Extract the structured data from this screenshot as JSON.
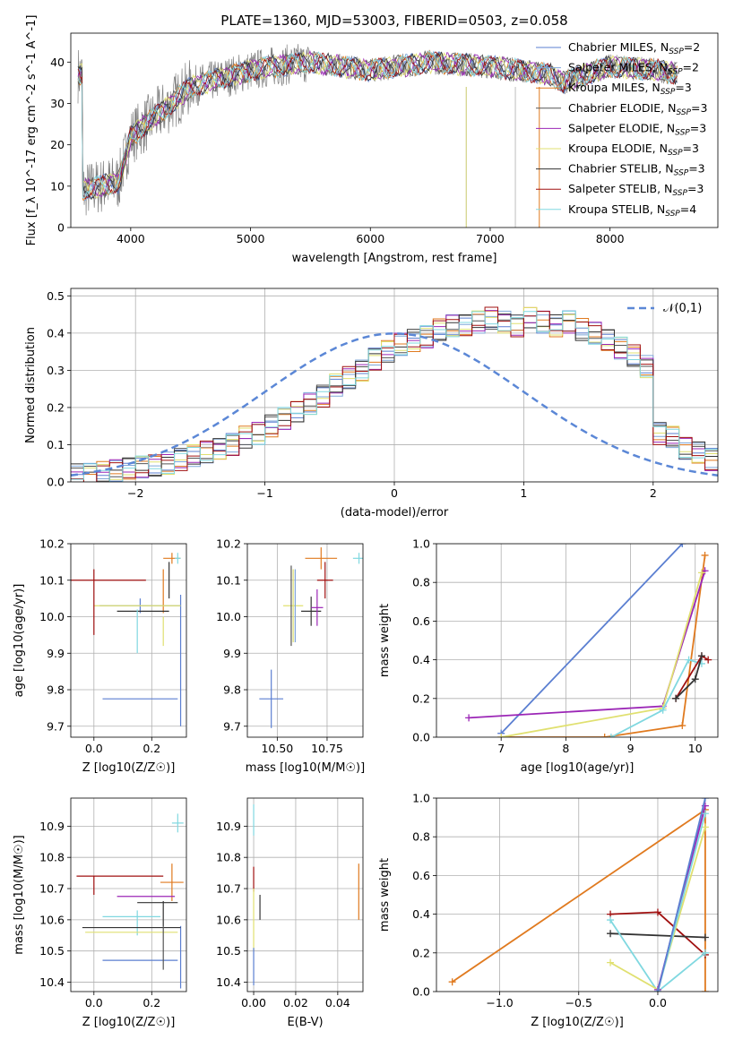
{
  "title": "PLATE=1360, MJD=53003, FIBERID=0503, z=0.058",
  "series_names": [
    "Chabrier MILES, N_SSP=2",
    "Salpeter MILES, N_SSP=2",
    "Kroupa MILES, N_SSP=3",
    "Chabrier ELODIE, N_SSP=3",
    "Salpeter ELODIE, N_SSP=3",
    "Kroupa ELODIE, N_SSP=3",
    "Chabrier STELIB, N_SSP=3",
    "Salpeter STELIB, N_SSP=3",
    "Kroupa STELIB, N_SSP=4"
  ],
  "series_colors": [
    "#5b7fd1",
    "#7fa7d9",
    "#e07a1f",
    "#555555",
    "#9b26b6",
    "#e0e070",
    "#333333",
    "#a01010",
    "#80d8e0"
  ],
  "chart_data": [
    {
      "id": "spectrum",
      "type": "line",
      "title": "PLATE=1360, MJD=53003, FIBERID=0503, z=0.058",
      "xlabel": "wavelength [Angstrom, rest frame]",
      "ylabel": "Flux [f_λ 10^-17 erg cm^-2 s^-1 A^-1]",
      "xlim": [
        3500,
        8900
      ],
      "ylim": [
        0,
        47
      ],
      "xticks": [
        "4000",
        "5000",
        "6000",
        "7000",
        "8000"
      ],
      "yticks": [
        "0",
        "10",
        "20",
        "30",
        "40"
      ],
      "legend_position": "upper right",
      "legend": [
        "Chabrier MILES, N_SSP=2",
        "Salpeter MILES, N_SSP=2",
        "Kroupa MILES, N_SSP=3",
        "Chabrier ELODIE, N_SSP=3",
        "Salpeter ELODIE, N_SSP=3",
        "Kroupa ELODIE, N_SSP=3",
        "Chabrier STELIB, N_SSP=3",
        "Salpeter STELIB, N_SSP=3",
        "Kroupa STELIB, N_SSP=4"
      ],
      "data_shape": {
        "x": [
          3600,
          3900,
          4000,
          4300,
          4500,
          5000,
          5200,
          5500,
          6000,
          6500,
          7000,
          7500,
          7600,
          8000,
          8400,
          8600
        ],
        "y": [
          9,
          11,
          22,
          29,
          34,
          38,
          39,
          40,
          38,
          40,
          39,
          37,
          35,
          39,
          38,
          37
        ]
      }
    },
    {
      "id": "residual-histogram",
      "type": "histogram",
      "xlabel": "(data-model)/error",
      "ylabel": "Normed distribution",
      "xlim": [
        -2.5,
        2.5
      ],
      "ylim": [
        0,
        0.52
      ],
      "xticks": [
        "-2",
        "-1",
        "0",
        "1",
        "2"
      ],
      "yticks": [
        "0.0",
        "0.1",
        "0.2",
        "0.3",
        "0.4",
        "0.5"
      ],
      "legend": [
        "𝒩(0,1)"
      ],
      "bin_edges_start": -2.5,
      "bin_width": 0.1,
      "hist_values": [
        0.02,
        0.02,
        0.025,
        0.03,
        0.035,
        0.04,
        0.045,
        0.05,
        0.06,
        0.07,
        0.08,
        0.09,
        0.1,
        0.12,
        0.13,
        0.15,
        0.17,
        0.19,
        0.21,
        0.23,
        0.26,
        0.28,
        0.3,
        0.33,
        0.35,
        0.37,
        0.38,
        0.39,
        0.41,
        0.42,
        0.42,
        0.43,
        0.44,
        0.43,
        0.42,
        0.44,
        0.43,
        0.42,
        0.43,
        0.41,
        0.4,
        0.38,
        0.36,
        0.34,
        0.31,
        0.28,
        0.25,
        0.22,
        0.2,
        0.17
      ],
      "hist_values_b": [
        0.13,
        0.12,
        0.09,
        0.08,
        0.06,
        0.05,
        0.04,
        0.035,
        0.03,
        0.02
      ]
    },
    {
      "id": "age-vs-Z",
      "type": "errorbar",
      "xlabel": "Z [log10(Z/Z☉)]",
      "ylabel": "age [log10(age/yr)]",
      "xlim": [
        -0.08,
        0.32
      ],
      "ylim": [
        9.67,
        10.2
      ],
      "xticks": [
        "0.0",
        "0.2"
      ],
      "yticks": [
        "9.7",
        "9.8",
        "9.9",
        "10.0",
        "10.1",
        "10.2"
      ],
      "points": [
        {
          "x": 0.16,
          "y": 10.03,
          "xerr": 0.14,
          "yerr": 0.02,
          "c": 0
        },
        {
          "x": 0.16,
          "y": 9.775,
          "xerr": 0.13,
          "yerr": 0.0,
          "c": 0
        },
        {
          "x": 0.3,
          "y": 9.88,
          "xerr": 0.0,
          "yerr": 0.18,
          "c": 0
        },
        {
          "x": 0.27,
          "y": 10.16,
          "xerr": 0.03,
          "yerr": 0.015,
          "c": 2
        },
        {
          "x": 0.24,
          "y": 10.07,
          "xerr": 0.0,
          "yerr": 0.06,
          "c": 2
        },
        {
          "x": 0.29,
          "y": 10.16,
          "xerr": 0.01,
          "yerr": 0.015,
          "c": 8
        },
        {
          "x": 0.15,
          "y": 10.03,
          "xerr": 0.15,
          "yerr": 0.0,
          "c": 5
        },
        {
          "x": 0.24,
          "y": 9.96,
          "xerr": 0.0,
          "yerr": 0.04,
          "c": 5
        },
        {
          "x": 0.17,
          "y": 10.015,
          "xerr": 0.09,
          "yerr": 0.0,
          "c": 6
        },
        {
          "x": 0.26,
          "y": 10.1,
          "xerr": 0.0,
          "yerr": 0.05,
          "c": 6
        },
        {
          "x": 0.04,
          "y": 10.1,
          "xerr": 0.14,
          "yerr": 0.0,
          "c": 7
        },
        {
          "x": 0.0,
          "y": 10.04,
          "xerr": 0.0,
          "yerr": 0.09,
          "c": 7
        },
        {
          "x": 0.15,
          "y": 9.96,
          "xerr": 0.0,
          "yerr": 0.06,
          "c": 8
        }
      ]
    },
    {
      "id": "age-vs-mass",
      "type": "errorbar",
      "xlabel": "mass [log10(M/M☉)]",
      "ylabel": "",
      "xlim": [
        10.35,
        10.93
      ],
      "ylim": [
        9.67,
        10.2
      ],
      "xticks": [
        "10.50",
        "10.75"
      ],
      "yticks": [
        "9.7",
        "9.8",
        "9.9",
        "10.0",
        "10.1",
        "10.2"
      ],
      "points": [
        {
          "x": 10.47,
          "y": 9.775,
          "xerr": 0.06,
          "yerr": 0.08,
          "c": 0
        },
        {
          "x": 10.58,
          "y": 10.03,
          "xerr": 0.05,
          "yerr": 0.1,
          "c": 5
        },
        {
          "x": 10.59,
          "y": 10.03,
          "xerr": 0.0,
          "yerr": 0.1,
          "c": 1
        },
        {
          "x": 10.72,
          "y": 10.16,
          "xerr": 0.08,
          "yerr": 0.03,
          "c": 2
        },
        {
          "x": 10.67,
          "y": 10.015,
          "xerr": 0.05,
          "yerr": 0.04,
          "c": 6
        },
        {
          "x": 10.74,
          "y": 10.1,
          "xerr": 0.04,
          "yerr": 0.05,
          "c": 7
        },
        {
          "x": 10.91,
          "y": 10.16,
          "xerr": 0.03,
          "yerr": 0.015,
          "c": 8
        },
        {
          "x": 10.7,
          "y": 10.025,
          "xerr": 0.03,
          "yerr": 0.05,
          "c": 4
        },
        {
          "x": 10.57,
          "y": 10.03,
          "xerr": 0.0,
          "yerr": 0.11,
          "c": 3
        }
      ]
    },
    {
      "id": "massweight-vs-age",
      "type": "line",
      "xlabel": "age [log10(age/yr)]",
      "ylabel": "mass weight",
      "xlim": [
        6.0,
        10.35
      ],
      "ylim": [
        0,
        1.0
      ],
      "xticks": [
        "7",
        "8",
        "9",
        "10"
      ],
      "yticks": [
        "0.0",
        "0.2",
        "0.4",
        "0.6",
        "0.8",
        "1.0"
      ],
      "lines": [
        {
          "c": 0,
          "x": [
            7.0,
            9.8
          ],
          "y": [
            0.02,
            1.0
          ]
        },
        {
          "c": 2,
          "x": [
            7.0,
            8.6,
            9.8,
            10.15
          ],
          "y": [
            0.0,
            0.0,
            0.06,
            0.94
          ]
        },
        {
          "c": 4,
          "x": [
            6.5,
            9.5,
            10.15
          ],
          "y": [
            0.1,
            0.16,
            0.86
          ]
        },
        {
          "c": 5,
          "x": [
            7.0,
            9.5,
            10.1
          ],
          "y": [
            0.0,
            0.15,
            0.85
          ]
        },
        {
          "c": 8,
          "x": [
            8.7,
            9.5,
            9.9,
            10.1
          ],
          "y": [
            0.0,
            0.14,
            0.4,
            0.38
          ]
        },
        {
          "c": 7,
          "x": [
            9.7,
            10.1,
            10.2
          ],
          "y": [
            0.2,
            0.42,
            0.4
          ]
        },
        {
          "c": 6,
          "x": [
            9.7,
            10.0,
            10.1
          ],
          "y": [
            0.2,
            0.3,
            0.42
          ]
        }
      ]
    },
    {
      "id": "mass-vs-Z",
      "type": "errorbar",
      "xlabel": "Z [log10(Z/Z☉)]",
      "ylabel": "mass [log10(M/M☉)]",
      "xlim": [
        -0.08,
        0.32
      ],
      "ylim": [
        10.37,
        10.99
      ],
      "xticks": [
        "0.0",
        "0.2"
      ],
      "yticks": [
        "10.4",
        "10.5",
        "10.6",
        "10.7",
        "10.8",
        "10.9"
      ],
      "points": [
        {
          "x": 0.16,
          "y": 10.47,
          "xerr": 0.13,
          "yerr": 0.0,
          "c": 0
        },
        {
          "x": 0.3,
          "y": 10.48,
          "xerr": 0.0,
          "yerr": 0.1,
          "c": 0
        },
        {
          "x": 0.27,
          "y": 10.72,
          "xerr": 0.04,
          "yerr": 0.06,
          "c": 2
        },
        {
          "x": 0.29,
          "y": 10.91,
          "xerr": 0.02,
          "yerr": 0.03,
          "c": 8
        },
        {
          "x": 0.09,
          "y": 10.74,
          "xerr": 0.15,
          "yerr": 0.0,
          "c": 7
        },
        {
          "x": 0.0,
          "y": 10.71,
          "xerr": 0.0,
          "yerr": 0.03,
          "c": 7
        },
        {
          "x": 0.18,
          "y": 10.675,
          "xerr": 0.1,
          "yerr": 0.0,
          "c": 4
        },
        {
          "x": 0.22,
          "y": 10.655,
          "xerr": 0.07,
          "yerr": 0.0,
          "c": 6
        },
        {
          "x": 0.24,
          "y": 10.62,
          "xerr": 0.0,
          "yerr": 0.04,
          "c": 6
        },
        {
          "x": 0.13,
          "y": 10.61,
          "xerr": 0.1,
          "yerr": 0.0,
          "c": 8
        },
        {
          "x": 0.15,
          "y": 10.59,
          "xerr": 0.0,
          "yerr": 0.04,
          "c": 8
        },
        {
          "x": 0.13,
          "y": 10.575,
          "xerr": 0.17,
          "yerr": 0.0,
          "c": 6
        },
        {
          "x": 0.13,
          "y": 10.56,
          "xerr": 0.16,
          "yerr": 0.0,
          "c": 5
        },
        {
          "x": 0.24,
          "y": 10.54,
          "xerr": 0.0,
          "yerr": 0.1,
          "c": 3
        }
      ]
    },
    {
      "id": "mass-vs-EBV",
      "type": "errorbar",
      "xlabel": "E(B-V)",
      "ylabel": "",
      "xlim": [
        -0.003,
        0.052
      ],
      "ylim": [
        10.37,
        10.99
      ],
      "xticks": [
        "0.00",
        "0.02",
        "0.04"
      ],
      "yticks": [
        "10.4",
        "10.5",
        "10.6",
        "10.7",
        "10.8",
        "10.9"
      ],
      "points": [
        {
          "x": 0.0,
          "y": 10.92,
          "xerr": 0.0,
          "yerr": 0.05,
          "c": 8
        },
        {
          "x": 0.0,
          "y": 10.73,
          "xerr": 0.0,
          "yerr": 0.04,
          "c": 7
        },
        {
          "x": 0.0,
          "y": 10.6,
          "xerr": 0.0,
          "yerr": 0.1,
          "c": 5
        },
        {
          "x": 0.0,
          "y": 10.45,
          "xerr": 0.0,
          "yerr": 0.06,
          "c": 0
        },
        {
          "x": 0.003,
          "y": 10.64,
          "xerr": 0.0,
          "yerr": 0.04,
          "c": 6
        },
        {
          "x": 0.05,
          "y": 10.69,
          "xerr": 0.0,
          "yerr": 0.09,
          "c": 2
        }
      ]
    },
    {
      "id": "massweight-vs-Z",
      "type": "line",
      "xlabel": "Z [log10(Z/Z☉)]",
      "ylabel": "mass weight",
      "xlim": [
        -1.4,
        0.38
      ],
      "ylim": [
        0,
        1.0
      ],
      "xticks": [
        "-1.0",
        "-0.5",
        "0.0"
      ],
      "yticks": [
        "0.0",
        "0.2",
        "0.4",
        "0.6",
        "0.8",
        "1.0"
      ],
      "lines": [
        {
          "c": 2,
          "x": [
            -1.3,
            0.3,
            0.3
          ],
          "y": [
            0.05,
            0.94,
            0.0
          ]
        },
        {
          "c": 7,
          "x": [
            -0.3,
            0.0,
            0.3
          ],
          "y": [
            0.4,
            0.41,
            0.19
          ]
        },
        {
          "c": 6,
          "x": [
            -0.3,
            0.3
          ],
          "y": [
            0.3,
            0.28
          ]
        },
        {
          "c": 8,
          "x": [
            -0.3,
            0.0,
            0.3
          ],
          "y": [
            0.37,
            0.0,
            0.2
          ]
        },
        {
          "c": 5,
          "x": [
            -0.3,
            0.0,
            0.3
          ],
          "y": [
            0.15,
            0.01,
            0.85
          ]
        },
        {
          "c": 4,
          "x": [
            0.0,
            0.3
          ],
          "y": [
            0.01,
            0.96
          ]
        },
        {
          "c": 8,
          "x": [
            0.0,
            0.3
          ],
          "y": [
            0.0,
            0.92
          ]
        },
        {
          "c": 0,
          "x": [
            0.0,
            0.3
          ],
          "y": [
            0.0,
            1.0
          ]
        }
      ]
    }
  ]
}
